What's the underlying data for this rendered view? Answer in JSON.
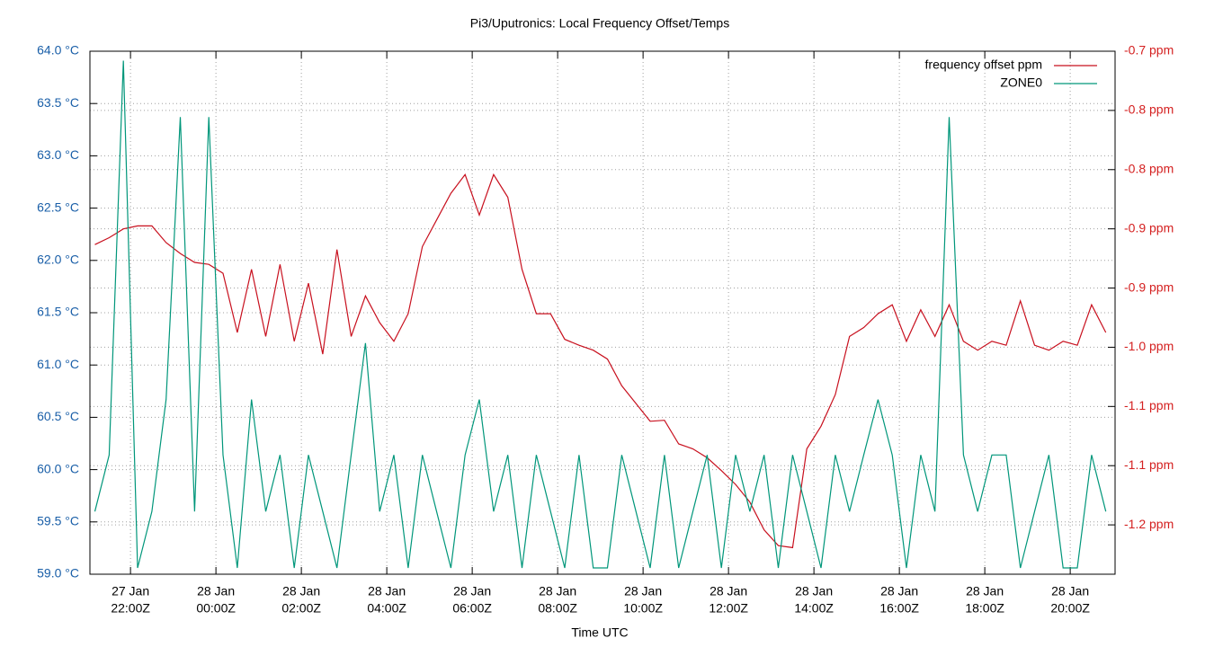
{
  "chart_data": {
    "type": "line",
    "title": "Pi3/Uputronics: Local Frequency Offset/Temps",
    "xlabel": "Time UTC",
    "grid": true,
    "legend": "top-right",
    "xlim": [
      "27 Jan 21:03",
      "28 Jan 21:03"
    ],
    "xticks": [
      {
        "value": "27 Jan 22:00",
        "label": [
          "27 Jan",
          "22:00Z"
        ]
      },
      {
        "value": "28 Jan 00:00",
        "label": [
          "28 Jan",
          "00:00Z"
        ]
      },
      {
        "value": "28 Jan 02:00",
        "label": [
          "28 Jan",
          "02:00Z"
        ]
      },
      {
        "value": "28 Jan 04:00",
        "label": [
          "28 Jan",
          "04:00Z"
        ]
      },
      {
        "value": "28 Jan 06:00",
        "label": [
          "28 Jan",
          "06:00Z"
        ]
      },
      {
        "value": "28 Jan 08:00",
        "label": [
          "28 Jan",
          "08:00Z"
        ]
      },
      {
        "value": "28 Jan 10:00",
        "label": [
          "28 Jan",
          "10:00Z"
        ]
      },
      {
        "value": "28 Jan 12:00",
        "label": [
          "28 Jan",
          "12:00Z"
        ]
      },
      {
        "value": "28 Jan 14:00",
        "label": [
          "28 Jan",
          "14:00Z"
        ]
      },
      {
        "value": "28 Jan 16:00",
        "label": [
          "28 Jan",
          "16:00Z"
        ]
      },
      {
        "value": "28 Jan 18:00",
        "label": [
          "28 Jan",
          "18:00Z"
        ]
      },
      {
        "value": "28 Jan 20:00",
        "label": [
          "28 Jan",
          "20:00Z"
        ]
      }
    ],
    "ylim": [
      59.0,
      64.0
    ],
    "yticks": [
      {
        "value": 59.0,
        "label": "59.0 °C"
      },
      {
        "value": 59.5,
        "label": "59.5 °C"
      },
      {
        "value": 60.0,
        "label": "60.0 °C"
      },
      {
        "value": 60.5,
        "label": "60.5 °C"
      },
      {
        "value": 61.0,
        "label": "61.0 °C"
      },
      {
        "value": 61.5,
        "label": "61.5 °C"
      },
      {
        "value": 62.0,
        "label": "62.0 °C"
      },
      {
        "value": 62.5,
        "label": "62.5 °C"
      },
      {
        "value": 63.0,
        "label": "63.0 °C"
      },
      {
        "value": 63.5,
        "label": "63.5 °C"
      },
      {
        "value": 64.0,
        "label": "64.0 °C"
      }
    ],
    "y2lim": [
      -1.23,
      -0.7
    ],
    "y2ticks": [
      {
        "value": -0.7,
        "label": "-0.7 ppm"
      },
      {
        "value": -0.76,
        "label": "-0.8 ppm"
      },
      {
        "value": -0.82,
        "label": "-0.8 ppm"
      },
      {
        "value": -0.88,
        "label": "-0.9 ppm"
      },
      {
        "value": -0.94,
        "label": "-0.9 ppm"
      },
      {
        "value": -1.0,
        "label": "-1.0 ppm"
      },
      {
        "value": -1.06,
        "label": "-1.1 ppm"
      },
      {
        "value": -1.12,
        "label": "-1.1 ppm"
      },
      {
        "value": -1.18,
        "label": "-1.2 ppm"
      }
    ],
    "x": [
      "27 Jan 21:10",
      "27 Jan 21:30",
      "27 Jan 21:50",
      "27 Jan 22:10",
      "27 Jan 22:30",
      "27 Jan 22:50",
      "27 Jan 23:10",
      "27 Jan 23:30",
      "27 Jan 23:50",
      "28 Jan 00:10",
      "28 Jan 00:30",
      "28 Jan 00:50",
      "28 Jan 01:10",
      "28 Jan 01:30",
      "28 Jan 01:50",
      "28 Jan 02:10",
      "28 Jan 02:30",
      "28 Jan 02:50",
      "28 Jan 03:10",
      "28 Jan 03:30",
      "28 Jan 03:50",
      "28 Jan 04:10",
      "28 Jan 04:30",
      "28 Jan 04:50",
      "28 Jan 05:10",
      "28 Jan 05:30",
      "28 Jan 05:50",
      "28 Jan 06:10",
      "28 Jan 06:30",
      "28 Jan 06:50",
      "28 Jan 07:10",
      "28 Jan 07:30",
      "28 Jan 07:50",
      "28 Jan 08:10",
      "28 Jan 08:30",
      "28 Jan 08:50",
      "28 Jan 09:10",
      "28 Jan 09:30",
      "28 Jan 09:50",
      "28 Jan 10:10",
      "28 Jan 10:30",
      "28 Jan 10:50",
      "28 Jan 11:10",
      "28 Jan 11:30",
      "28 Jan 11:50",
      "28 Jan 12:10",
      "28 Jan 12:30",
      "28 Jan 12:50",
      "28 Jan 13:10",
      "28 Jan 13:30",
      "28 Jan 13:50",
      "28 Jan 14:10",
      "28 Jan 14:30",
      "28 Jan 14:50",
      "28 Jan 15:10",
      "28 Jan 15:30",
      "28 Jan 15:50",
      "28 Jan 16:10",
      "28 Jan 16:30",
      "28 Jan 16:50",
      "28 Jan 17:10",
      "28 Jan 17:30",
      "28 Jan 17:50",
      "28 Jan 18:10",
      "28 Jan 18:30",
      "28 Jan 18:50",
      "28 Jan 19:10",
      "28 Jan 19:30",
      "28 Jan 19:50",
      "28 Jan 20:10",
      "28 Jan 20:30",
      "28 Jan 20:50"
    ],
    "series": [
      {
        "name": "frequency offset ppm",
        "color": "#c8101e",
        "axis": "y2",
        "values": [
          -0.896,
          -0.889,
          -0.88,
          -0.877,
          -0.877,
          -0.894,
          -0.905,
          -0.914,
          -0.916,
          -0.925,
          -0.985,
          -0.921,
          -0.989,
          -0.916,
          -0.994,
          -0.935,
          -1.007,
          -0.901,
          -0.989,
          -0.948,
          -0.975,
          -0.994,
          -0.966,
          -0.898,
          -0.871,
          -0.844,
          -0.825,
          -0.866,
          -0.825,
          -0.848,
          -0.921,
          -0.966,
          -0.966,
          -0.992,
          -0.998,
          -1.003,
          -1.012,
          -1.039,
          -1.057,
          -1.075,
          -1.074,
          -1.098,
          -1.103,
          -1.112,
          -1.125,
          -1.139,
          -1.157,
          -1.185,
          -1.201,
          -1.203,
          -1.103,
          -1.08,
          -1.048,
          -0.989,
          -0.98,
          -0.966,
          -0.957,
          -0.994,
          -0.962,
          -0.989,
          -0.957,
          -0.994,
          -1.003,
          -0.994,
          -0.998,
          -0.953,
          -0.998,
          -1.003,
          -0.994,
          -0.998,
          -0.957,
          -0.985
        ]
      },
      {
        "name": "ZONE0",
        "color": "#00967a",
        "values": [
          59.6,
          60.14,
          63.91,
          59.06,
          59.6,
          60.67,
          63.37,
          59.6,
          63.37,
          60.14,
          59.06,
          60.67,
          59.6,
          60.14,
          59.06,
          60.14,
          59.6,
          59.06,
          60.14,
          61.21,
          59.6,
          60.14,
          59.06,
          60.14,
          59.6,
          59.06,
          60.14,
          60.67,
          59.6,
          60.14,
          59.06,
          60.14,
          59.6,
          59.06,
          60.14,
          59.06,
          59.06,
          60.14,
          59.6,
          59.06,
          60.14,
          59.06,
          59.6,
          60.14,
          59.06,
          60.14,
          59.6,
          60.14,
          59.06,
          60.14,
          59.6,
          59.06,
          60.14,
          59.6,
          60.14,
          60.67,
          60.14,
          59.06,
          60.14,
          59.6,
          63.37,
          60.14,
          59.6,
          60.14,
          60.14,
          59.06,
          59.6,
          60.14,
          59.06,
          59.06,
          60.14,
          59.6
        ]
      }
    ]
  }
}
